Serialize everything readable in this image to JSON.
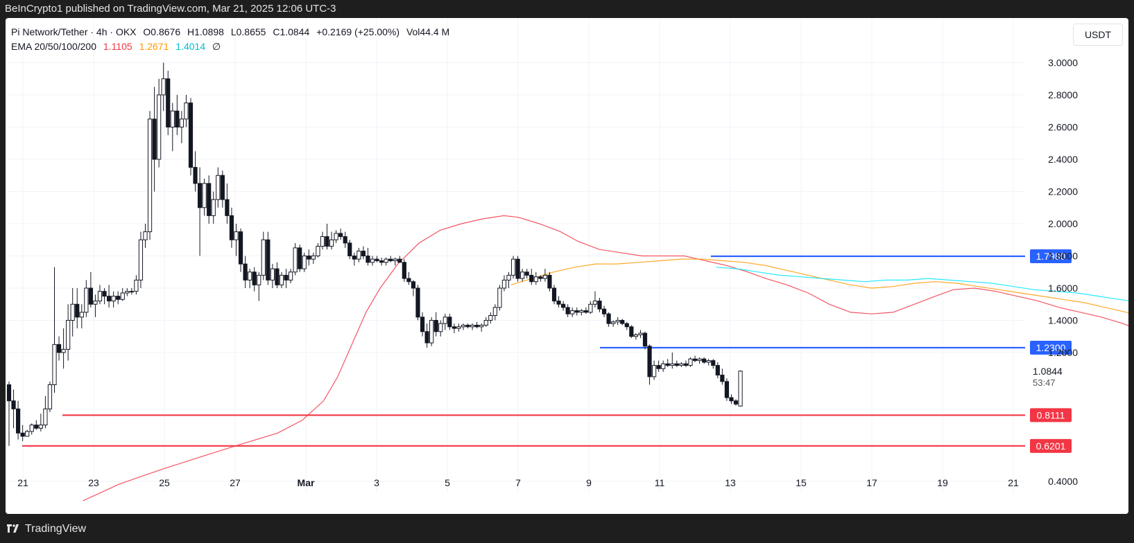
{
  "header": {
    "published": "BeInCrypto1 published on TradingView.com, Mar 21, 2025 12:06 UTC-3"
  },
  "legend": {
    "symbol": "Pi Network/Tether · 4h · OKX",
    "open": "O0.8676",
    "high": "H1.0898",
    "low": "L0.8655",
    "close": "C1.0844",
    "change": "+0.2169 (+25.00%)",
    "volume": "Vol44.4 M",
    "ema_label": "EMA 20/50/100/200",
    "ema20": "1.1105",
    "ema50": "1.2671",
    "ema100": "1.4014",
    "ema200": "∅"
  },
  "currency": "USDT",
  "footer": {
    "brand": "TradingView"
  },
  "colors": {
    "candle": "#131722",
    "ema20": "#f23645",
    "ema50": "#ff9800",
    "ema100": "#00e5ff",
    "resistance": "#2962ff",
    "support": "#f23645"
  },
  "chart_data": {
    "type": "candlestick",
    "title": "Pi Network/Tether · 4h · OKX",
    "ylim": [
      0.3,
      3.1
    ],
    "y_ticks": [
      "0.4000",
      "1.2000",
      "1.4000",
      "1.6000",
      "1.8000",
      "2.0000",
      "2.2000",
      "2.4000",
      "2.6000",
      "2.8000",
      "3.0000"
    ],
    "x_ticks": [
      "21",
      "23",
      "25",
      "27",
      "Mar",
      "3",
      "5",
      "7",
      "9",
      "11",
      "13",
      "15",
      "17",
      "19",
      "21"
    ],
    "last_price": {
      "value": 1.0844,
      "label": "1.0844",
      "countdown": "53:47"
    },
    "levels": [
      {
        "value": 1.798,
        "label": "1.7980",
        "kind": "resistance"
      },
      {
        "value": 1.23,
        "label": "1.2300",
        "kind": "resistance"
      },
      {
        "value": 0.8111,
        "label": "0.8111",
        "kind": "support"
      },
      {
        "value": 0.6201,
        "label": "0.6201",
        "kind": "support"
      }
    ],
    "candles": [
      [
        1.0,
        1.02,
        0.62,
        0.9
      ],
      [
        0.9,
        0.97,
        0.73,
        0.85
      ],
      [
        0.85,
        0.9,
        0.66,
        0.7
      ],
      [
        0.7,
        0.75,
        0.65,
        0.68
      ],
      [
        0.68,
        0.72,
        0.68,
        0.71
      ],
      [
        0.71,
        0.76,
        0.69,
        0.75
      ],
      [
        0.75,
        0.78,
        0.72,
        0.73
      ],
      [
        0.73,
        0.82,
        0.71,
        0.75
      ],
      [
        0.75,
        0.93,
        0.73,
        0.85
      ],
      [
        0.85,
        1.02,
        0.83,
        1.0
      ],
      [
        1.0,
        1.73,
        0.95,
        1.25
      ],
      [
        1.25,
        1.3,
        1.15,
        1.2
      ],
      [
        1.2,
        1.35,
        1.1,
        1.22
      ],
      [
        1.22,
        1.5,
        1.15,
        1.4
      ],
      [
        1.4,
        1.6,
        1.3,
        1.5
      ],
      [
        1.5,
        1.6,
        1.35,
        1.42
      ],
      [
        1.42,
        1.5,
        1.35,
        1.45
      ],
      [
        1.45,
        1.65,
        1.42,
        1.6
      ],
      [
        1.6,
        1.7,
        1.48,
        1.5
      ],
      [
        1.5,
        1.56,
        1.42,
        1.52
      ],
      [
        1.52,
        1.62,
        1.5,
        1.58
      ],
      [
        1.58,
        1.6,
        1.5,
        1.55
      ],
      [
        1.55,
        1.62,
        1.48,
        1.52
      ],
      [
        1.52,
        1.58,
        1.48,
        1.55
      ],
      [
        1.55,
        1.58,
        1.5,
        1.53
      ],
      [
        1.53,
        1.6,
        1.52,
        1.57
      ],
      [
        1.57,
        1.6,
        1.55,
        1.58
      ],
      [
        1.58,
        1.6,
        1.56,
        1.58
      ],
      [
        1.58,
        1.68,
        1.56,
        1.65
      ],
      [
        1.65,
        1.95,
        1.6,
        1.9
      ],
      [
        1.9,
        2.0,
        1.85,
        1.95
      ],
      [
        1.95,
        2.7,
        1.9,
        2.65
      ],
      [
        2.65,
        2.85,
        2.2,
        2.4
      ],
      [
        2.4,
        2.9,
        2.35,
        2.8
      ],
      [
        2.8,
        3.0,
        2.7,
        2.9
      ],
      [
        2.9,
        2.95,
        2.55,
        2.6
      ],
      [
        2.6,
        2.75,
        2.45,
        2.7
      ],
      [
        2.7,
        2.8,
        2.55,
        2.6
      ],
      [
        2.6,
        2.7,
        2.5,
        2.65
      ],
      [
        2.65,
        2.8,
        2.6,
        2.75
      ],
      [
        2.75,
        2.78,
        2.3,
        2.35
      ],
      [
        2.35,
        2.45,
        2.2,
        2.25
      ],
      [
        2.25,
        2.35,
        1.8,
        2.1
      ],
      [
        2.1,
        2.28,
        2.05,
        2.25
      ],
      [
        2.25,
        2.3,
        2.0,
        2.05
      ],
      [
        2.05,
        2.2,
        2.0,
        2.15
      ],
      [
        2.15,
        2.35,
        2.1,
        2.3
      ],
      [
        2.3,
        2.33,
        2.1,
        2.15
      ],
      [
        2.15,
        2.25,
        2.0,
        2.05
      ],
      [
        2.05,
        2.1,
        1.85,
        1.9
      ],
      [
        1.9,
        2.0,
        1.8,
        1.95
      ],
      [
        1.95,
        1.97,
        1.7,
        1.75
      ],
      [
        1.75,
        1.8,
        1.6,
        1.65
      ],
      [
        1.65,
        1.72,
        1.6,
        1.7
      ],
      [
        1.7,
        1.73,
        1.58,
        1.62
      ],
      [
        1.62,
        1.7,
        1.52,
        1.68
      ],
      [
        1.68,
        1.95,
        1.65,
        1.9
      ],
      [
        1.9,
        1.95,
        1.62,
        1.65
      ],
      [
        1.65,
        1.75,
        1.6,
        1.72
      ],
      [
        1.72,
        1.76,
        1.6,
        1.62
      ],
      [
        1.62,
        1.7,
        1.6,
        1.68
      ],
      [
        1.68,
        1.72,
        1.6,
        1.65
      ],
      [
        1.65,
        1.72,
        1.63,
        1.7
      ],
      [
        1.7,
        1.88,
        1.68,
        1.85
      ],
      [
        1.85,
        1.87,
        1.7,
        1.72
      ],
      [
        1.72,
        1.82,
        1.7,
        1.8
      ],
      [
        1.8,
        1.84,
        1.74,
        1.78
      ],
      [
        1.78,
        1.82,
        1.75,
        1.8
      ],
      [
        1.8,
        1.88,
        1.79,
        1.86
      ],
      [
        1.86,
        1.95,
        1.84,
        1.92
      ],
      [
        1.92,
        2.0,
        1.84,
        1.86
      ],
      [
        1.86,
        1.95,
        1.84,
        1.9
      ],
      [
        1.9,
        1.96,
        1.88,
        1.94
      ],
      [
        1.94,
        1.97,
        1.9,
        1.92
      ],
      [
        1.92,
        1.95,
        1.85,
        1.88
      ],
      [
        1.88,
        1.9,
        1.78,
        1.8
      ],
      [
        1.8,
        1.82,
        1.74,
        1.78
      ],
      [
        1.78,
        1.85,
        1.76,
        1.83
      ],
      [
        1.83,
        1.86,
        1.78,
        1.8
      ],
      [
        1.8,
        1.85,
        1.74,
        1.76
      ],
      [
        1.76,
        1.8,
        1.74,
        1.78
      ],
      [
        1.78,
        1.8,
        1.76,
        1.77
      ],
      [
        1.77,
        1.79,
        1.74,
        1.76
      ],
      [
        1.76,
        1.79,
        1.74,
        1.78
      ],
      [
        1.78,
        1.8,
        1.76,
        1.77
      ],
      [
        1.77,
        1.79,
        1.74,
        1.78
      ],
      [
        1.78,
        1.8,
        1.76,
        1.76
      ],
      [
        1.76,
        1.78,
        1.64,
        1.66
      ],
      [
        1.66,
        1.7,
        1.62,
        1.64
      ],
      [
        1.64,
        1.65,
        1.55,
        1.6
      ],
      [
        1.6,
        1.62,
        1.4,
        1.42
      ],
      [
        1.42,
        1.45,
        1.3,
        1.33
      ],
      [
        1.33,
        1.38,
        1.23,
        1.26
      ],
      [
        1.26,
        1.42,
        1.24,
        1.4
      ],
      [
        1.4,
        1.45,
        1.3,
        1.33
      ],
      [
        1.33,
        1.4,
        1.3,
        1.38
      ],
      [
        1.38,
        1.44,
        1.34,
        1.42
      ],
      [
        1.42,
        1.44,
        1.34,
        1.36
      ],
      [
        1.36,
        1.38,
        1.32,
        1.35
      ],
      [
        1.35,
        1.38,
        1.33,
        1.36
      ],
      [
        1.36,
        1.38,
        1.34,
        1.37
      ],
      [
        1.37,
        1.38,
        1.35,
        1.36
      ],
      [
        1.36,
        1.38,
        1.34,
        1.37
      ],
      [
        1.37,
        1.39,
        1.35,
        1.36
      ],
      [
        1.36,
        1.38,
        1.33,
        1.37
      ],
      [
        1.37,
        1.42,
        1.36,
        1.4
      ],
      [
        1.4,
        1.45,
        1.38,
        1.43
      ],
      [
        1.43,
        1.5,
        1.4,
        1.48
      ],
      [
        1.48,
        1.62,
        1.46,
        1.6
      ],
      [
        1.6,
        1.68,
        1.58,
        1.65
      ],
      [
        1.65,
        1.7,
        1.6,
        1.68
      ],
      [
        1.68,
        1.8,
        1.66,
        1.78
      ],
      [
        1.78,
        1.8,
        1.64,
        1.66
      ],
      [
        1.66,
        1.72,
        1.64,
        1.7
      ],
      [
        1.7,
        1.72,
        1.66,
        1.68
      ],
      [
        1.68,
        1.72,
        1.62,
        1.64
      ],
      [
        1.64,
        1.7,
        1.62,
        1.67
      ],
      [
        1.67,
        1.68,
        1.64,
        1.66
      ],
      [
        1.66,
        1.72,
        1.64,
        1.68
      ],
      [
        1.68,
        1.7,
        1.58,
        1.6
      ],
      [
        1.6,
        1.62,
        1.5,
        1.52
      ],
      [
        1.52,
        1.55,
        1.48,
        1.5
      ],
      [
        1.5,
        1.52,
        1.46,
        1.48
      ],
      [
        1.48,
        1.5,
        1.42,
        1.44
      ],
      [
        1.44,
        1.48,
        1.42,
        1.46
      ],
      [
        1.46,
        1.48,
        1.43,
        1.45
      ],
      [
        1.45,
        1.47,
        1.43,
        1.46
      ],
      [
        1.46,
        1.48,
        1.44,
        1.45
      ],
      [
        1.45,
        1.52,
        1.44,
        1.5
      ],
      [
        1.5,
        1.58,
        1.48,
        1.52
      ],
      [
        1.52,
        1.54,
        1.45,
        1.47
      ],
      [
        1.47,
        1.49,
        1.42,
        1.44
      ],
      [
        1.44,
        1.45,
        1.36,
        1.38
      ],
      [
        1.38,
        1.4,
        1.36,
        1.39
      ],
      [
        1.39,
        1.42,
        1.37,
        1.4
      ],
      [
        1.4,
        1.41,
        1.37,
        1.38
      ],
      [
        1.38,
        1.39,
        1.34,
        1.36
      ],
      [
        1.36,
        1.37,
        1.29,
        1.3
      ],
      [
        1.3,
        1.32,
        1.28,
        1.31
      ],
      [
        1.31,
        1.34,
        1.29,
        1.32
      ],
      [
        1.32,
        1.33,
        1.22,
        1.24
      ],
      [
        1.24,
        1.25,
        1.0,
        1.05
      ],
      [
        1.05,
        1.15,
        1.03,
        1.12
      ],
      [
        1.12,
        1.15,
        1.08,
        1.1
      ],
      [
        1.1,
        1.15,
        1.08,
        1.13
      ],
      [
        1.13,
        1.16,
        1.11,
        1.12
      ],
      [
        1.12,
        1.2,
        1.1,
        1.13
      ],
      [
        1.13,
        1.15,
        1.11,
        1.12
      ],
      [
        1.12,
        1.14,
        1.11,
        1.13
      ],
      [
        1.13,
        1.15,
        1.11,
        1.12
      ],
      [
        1.12,
        1.17,
        1.11,
        1.16
      ],
      [
        1.16,
        1.18,
        1.14,
        1.15
      ],
      [
        1.15,
        1.17,
        1.13,
        1.16
      ],
      [
        1.16,
        1.17,
        1.13,
        1.14
      ],
      [
        1.14,
        1.16,
        1.12,
        1.15
      ],
      [
        1.15,
        1.16,
        1.1,
        1.12
      ],
      [
        1.12,
        1.14,
        1.04,
        1.06
      ],
      [
        1.06,
        1.1,
        1.0,
        1.02
      ],
      [
        1.02,
        1.04,
        0.9,
        0.92
      ],
      [
        0.92,
        0.94,
        0.88,
        0.9
      ],
      [
        0.9,
        0.91,
        0.87,
        0.88
      ],
      [
        0.8676,
        1.0898,
        0.8655,
        1.0844
      ]
    ],
    "ema20": [
      [
        1.7,
        0.28
      ],
      [
        2.2,
        0.33
      ],
      [
        2.7,
        0.38
      ],
      [
        3.2,
        0.42
      ],
      [
        4.0,
        0.48
      ],
      [
        5.0,
        0.55
      ],
      [
        6.0,
        0.62
      ],
      [
        7.2,
        0.7
      ],
      [
        7.9,
        0.78
      ],
      [
        8.5,
        0.9
      ],
      [
        8.9,
        1.05
      ],
      [
        9.3,
        1.25
      ],
      [
        9.7,
        1.45
      ],
      [
        10.1,
        1.6
      ],
      [
        10.6,
        1.75
      ],
      [
        11.2,
        1.88
      ],
      [
        11.8,
        1.96
      ],
      [
        12.4,
        2.0
      ],
      [
        13.0,
        2.03
      ],
      [
        13.6,
        2.05
      ],
      [
        14.0,
        2.04
      ],
      [
        14.6,
        2.0
      ],
      [
        15.2,
        1.95
      ],
      [
        15.7,
        1.89
      ],
      [
        16.3,
        1.84
      ],
      [
        16.9,
        1.82
      ],
      [
        17.5,
        1.8
      ],
      [
        18.1,
        1.8
      ],
      [
        18.7,
        1.8
      ],
      [
        19.3,
        1.77
      ],
      [
        19.9,
        1.74
      ],
      [
        20.5,
        1.7
      ],
      [
        21.0,
        1.66
      ],
      [
        21.6,
        1.62
      ],
      [
        22.2,
        1.57
      ],
      [
        22.8,
        1.5
      ],
      [
        23.4,
        1.45
      ],
      [
        24.0,
        1.44
      ],
      [
        24.6,
        1.45
      ],
      [
        25.2,
        1.5
      ],
      [
        25.8,
        1.55
      ],
      [
        26.3,
        1.59
      ],
      [
        26.9,
        1.6
      ],
      [
        27.5,
        1.58
      ],
      [
        28.1,
        1.55
      ],
      [
        28.7,
        1.52
      ],
      [
        29.3,
        1.48
      ],
      [
        29.9,
        1.45
      ],
      [
        30.5,
        1.42
      ],
      [
        31.1,
        1.38
      ],
      [
        31.7,
        1.33
      ],
      [
        32.3,
        1.28
      ],
      [
        33.0,
        1.23
      ],
      [
        33.6,
        1.19
      ],
      [
        34.2,
        1.15
      ],
      [
        34.6,
        1.12
      ],
      [
        34.85,
        1.1105
      ]
    ],
    "ema50": [
      [
        13.8,
        1.62
      ],
      [
        14.4,
        1.66
      ],
      [
        15.0,
        1.7
      ],
      [
        15.6,
        1.73
      ],
      [
        16.2,
        1.75
      ],
      [
        16.8,
        1.75
      ],
      [
        17.4,
        1.76
      ],
      [
        18.0,
        1.77
      ],
      [
        18.6,
        1.78
      ],
      [
        19.2,
        1.78
      ],
      [
        19.8,
        1.77
      ],
      [
        20.4,
        1.76
      ],
      [
        21.0,
        1.74
      ],
      [
        21.6,
        1.71
      ],
      [
        22.2,
        1.68
      ],
      [
        22.8,
        1.65
      ],
      [
        23.4,
        1.62
      ],
      [
        24.0,
        1.6
      ],
      [
        24.6,
        1.61
      ],
      [
        25.2,
        1.63
      ],
      [
        25.8,
        1.64
      ],
      [
        26.4,
        1.63
      ],
      [
        27.0,
        1.61
      ],
      [
        27.6,
        1.59
      ],
      [
        28.2,
        1.57
      ],
      [
        28.8,
        1.55
      ],
      [
        29.4,
        1.53
      ],
      [
        30.0,
        1.51
      ],
      [
        30.6,
        1.48
      ],
      [
        31.2,
        1.45
      ],
      [
        31.8,
        1.42
      ],
      [
        32.4,
        1.39
      ],
      [
        33.0,
        1.36
      ],
      [
        33.6,
        1.32
      ],
      [
        34.2,
        1.29
      ],
      [
        34.85,
        1.2671
      ]
    ],
    "ema100": [
      [
        19.6,
        1.73
      ],
      [
        20.2,
        1.72
      ],
      [
        20.8,
        1.7
      ],
      [
        21.4,
        1.68
      ],
      [
        22.0,
        1.67
      ],
      [
        22.6,
        1.66
      ],
      [
        23.2,
        1.65
      ],
      [
        23.8,
        1.64
      ],
      [
        24.4,
        1.65
      ],
      [
        25.0,
        1.65
      ],
      [
        25.6,
        1.66
      ],
      [
        26.2,
        1.65
      ],
      [
        26.8,
        1.64
      ],
      [
        27.4,
        1.63
      ],
      [
        28.0,
        1.61
      ],
      [
        28.6,
        1.59
      ],
      [
        29.2,
        1.58
      ],
      [
        29.8,
        1.57
      ],
      [
        30.4,
        1.55
      ],
      [
        31.0,
        1.53
      ],
      [
        31.6,
        1.51
      ],
      [
        32.2,
        1.49
      ],
      [
        32.8,
        1.47
      ],
      [
        33.4,
        1.45
      ],
      [
        34.0,
        1.43
      ],
      [
        34.5,
        1.41
      ],
      [
        34.85,
        1.4014
      ]
    ]
  }
}
